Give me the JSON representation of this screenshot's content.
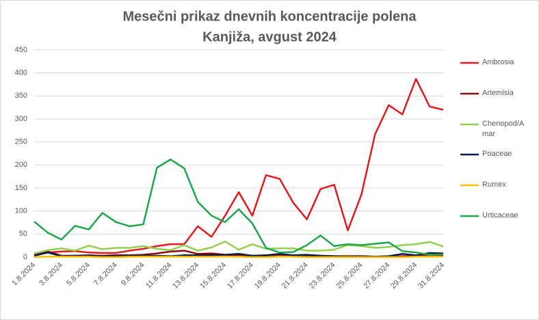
{
  "chart_data": {
    "type": "line",
    "title": "Mesečni prikaz dnevnih koncentracije polena",
    "subtitle": "Kanjiža, avgust 2024",
    "categories": [
      "1.8.2024",
      null,
      "3.8.2024",
      null,
      "5.8.2024",
      null,
      "7.8.2024",
      null,
      "9.8.2024",
      null,
      "11.8.2024",
      null,
      "13.8.2024",
      null,
      "15.8.2024",
      null,
      "17.8.2024",
      null,
      "19.8.2024",
      null,
      "21.8.2024",
      null,
      "23.8.2024",
      null,
      "25.8.2024",
      null,
      "27.8.2024",
      null,
      "29.8.2024",
      null,
      "31.8.2024"
    ],
    "series": [
      {
        "name": "Ambrosia",
        "color": "#e3191c",
        "values": [
          5,
          10,
          12,
          13,
          10,
          9,
          9,
          14,
          18,
          24,
          28,
          28,
          67,
          44,
          90,
          141,
          90,
          178,
          170,
          118,
          82,
          148,
          157,
          58,
          136,
          267,
          330,
          310,
          387,
          327,
          320
        ]
      },
      {
        "name": "Artemisia",
        "color": "#8b0a0a",
        "values": [
          5,
          12,
          3,
          3,
          4,
          3,
          4,
          4,
          5,
          8,
          12,
          14,
          7,
          8,
          5,
          4,
          3,
          3,
          5,
          4,
          3,
          3,
          2,
          2,
          2,
          1,
          1,
          2,
          3,
          4,
          4
        ]
      },
      {
        "name": "Chenopod/Amar",
        "color": "#92d050",
        "values": [
          8,
          15,
          19,
          14,
          25,
          17,
          20,
          20,
          24,
          18,
          15,
          26,
          14,
          21,
          34,
          16,
          28,
          18,
          19,
          19,
          14,
          14,
          16,
          26,
          24,
          20,
          22,
          26,
          28,
          33,
          23
        ]
      },
      {
        "name": "Poaceae",
        "color": "#0d1b4c",
        "values": [
          3,
          10,
          2,
          3,
          3,
          2,
          2,
          3,
          3,
          3,
          2,
          4,
          4,
          4,
          5,
          7,
          3,
          4,
          7,
          4,
          5,
          3,
          2,
          1,
          2,
          1,
          2,
          7,
          4,
          9,
          8
        ]
      },
      {
        "name": "Rumex",
        "color": "#ffc000",
        "values": [
          0,
          1,
          1,
          1,
          1,
          0,
          0,
          1,
          1,
          1,
          1,
          1,
          1,
          1,
          1,
          1,
          0,
          0,
          1,
          1,
          0,
          0,
          0,
          0,
          0,
          0,
          0,
          0,
          1,
          1,
          1
        ]
      },
      {
        "name": "Urticaceae",
        "color": "#1ea64a",
        "values": [
          77,
          53,
          38,
          68,
          60,
          96,
          76,
          67,
          71,
          194,
          212,
          193,
          120,
          90,
          76,
          104,
          73,
          20,
          10,
          11,
          26,
          47,
          24,
          28,
          26,
          29,
          32,
          13,
          10,
          5,
          6
        ]
      }
    ],
    "ylim": [
      0,
      450
    ],
    "yticks": [
      0,
      50,
      100,
      150,
      200,
      250,
      300,
      350,
      400,
      450
    ],
    "grid": true,
    "legend": "right"
  }
}
